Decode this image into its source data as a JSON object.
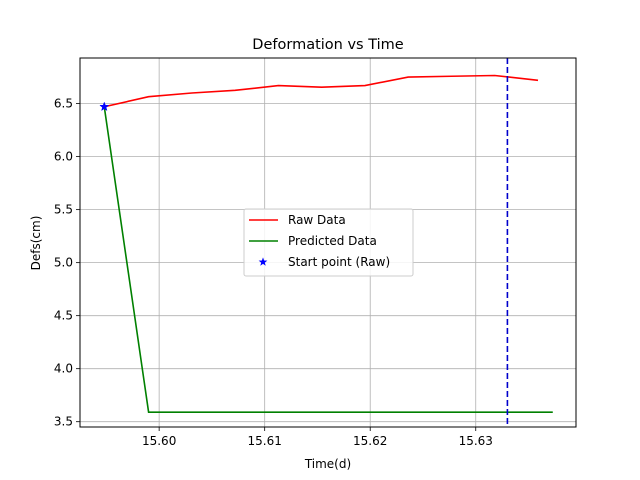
{
  "chart_data": {
    "type": "line",
    "title": "Deformation vs Time",
    "xlabel": "Time(d)",
    "ylabel": "Defs(cm)",
    "xlim": [
      15.5925,
      15.6395
    ],
    "ylim": [
      3.45,
      6.93
    ],
    "xticks": [
      15.6,
      15.61,
      15.62,
      15.63
    ],
    "xtick_labels": [
      "15.60",
      "15.61",
      "15.62",
      "15.63"
    ],
    "yticks": [
      3.5,
      4.0,
      4.5,
      5.0,
      5.5,
      6.0,
      6.5
    ],
    "ytick_labels": [
      "3.5",
      "4.0",
      "4.5",
      "5.0",
      "5.5",
      "6.0",
      "6.5"
    ],
    "grid": true,
    "legend_position": "center",
    "series": [
      {
        "name": "Raw Data",
        "kind": "line",
        "color": "#ff0000",
        "x": [
          15.5948,
          15.599,
          15.6031,
          15.6072,
          15.6113,
          15.6154,
          15.6195,
          15.6236,
          15.6277,
          15.6318,
          15.6359
        ],
        "y": [
          6.47,
          6.565,
          6.6,
          6.625,
          6.67,
          6.655,
          6.67,
          6.75,
          6.758,
          6.765,
          6.72
        ]
      },
      {
        "name": "Predicted Data",
        "kind": "line",
        "color": "#008000",
        "x": [
          15.5948,
          15.599,
          15.6373
        ],
        "y": [
          6.47,
          3.59,
          3.59
        ]
      },
      {
        "name": "Start point (Raw)",
        "kind": "marker",
        "marker": "star",
        "color": "#0000ff",
        "x": [
          15.5948
        ],
        "y": [
          6.47
        ]
      }
    ],
    "vline": {
      "x": 15.633,
      "color": "#0000cc",
      "style": "dashed"
    }
  }
}
